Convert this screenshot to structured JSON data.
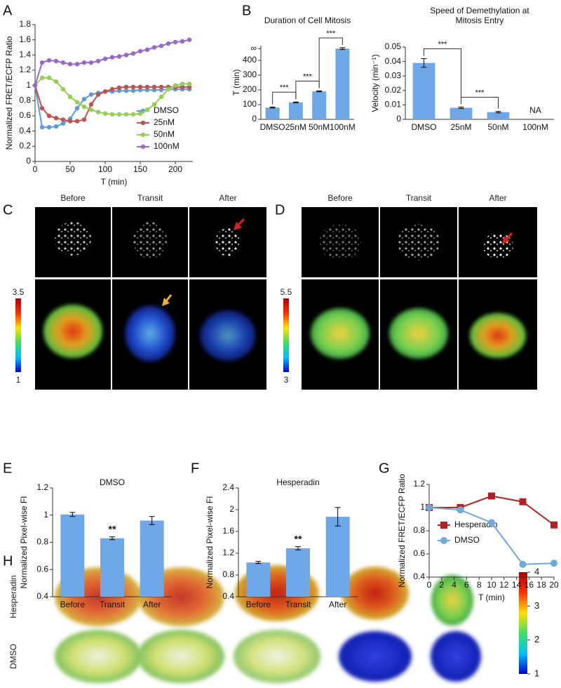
{
  "panel_labels": [
    "A",
    "B",
    "C",
    "D",
    "E",
    "F",
    "G",
    "H"
  ],
  "chart_data": [
    {
      "type": "line",
      "ylabel": "Normalized FRET/ECFP Ratio",
      "xlabel": "T (min)",
      "x": [
        0,
        10,
        20,
        30,
        40,
        50,
        60,
        70,
        80,
        90,
        100,
        110,
        120,
        130,
        140,
        150,
        160,
        170,
        180,
        190,
        200,
        210,
        220
      ],
      "xlim": [
        0,
        225
      ],
      "xticks": [
        0,
        50,
        100,
        150,
        200
      ],
      "ylim": [
        0,
        1.8
      ],
      "yticks": [
        0,
        0.2,
        0.4,
        0.6,
        0.8,
        1,
        1.2,
        1.4,
        1.6,
        1.8
      ],
      "legend": "lower right",
      "series": [
        {
          "name": "DMSO",
          "color": "#5b9bd5",
          "marker": "circle",
          "values": [
            1,
            0.45,
            0.45,
            0.46,
            0.5,
            0.56,
            0.7,
            0.82,
            0.88,
            0.9,
            0.92,
            0.92,
            0.93,
            0.93,
            0.93,
            0.94,
            0.94,
            0.94,
            0.94,
            0.95,
            0.95,
            0.95,
            0.95
          ]
        },
        {
          "name": "25nM",
          "color": "#c0504d",
          "marker": "circle",
          "values": [
            1,
            0.7,
            0.6,
            0.57,
            0.55,
            0.53,
            0.53,
            0.55,
            0.75,
            0.88,
            0.92,
            0.95,
            0.97,
            0.98,
            0.98,
            0.98,
            0.98,
            0.98,
            0.98,
            0.98,
            0.98,
            0.98,
            0.98
          ]
        },
        {
          "name": "50nM",
          "color": "#92d050",
          "marker": "circle",
          "values": [
            1,
            1.1,
            1.1,
            1.05,
            0.95,
            0.85,
            0.78,
            0.72,
            0.68,
            0.65,
            0.63,
            0.62,
            0.62,
            0.62,
            0.62,
            0.63,
            0.68,
            0.75,
            0.85,
            0.95,
            1.0,
            1.02,
            1.02
          ]
        },
        {
          "name": "100nM",
          "color": "#9966cc",
          "marker": "circle",
          "values": [
            1,
            1.3,
            1.33,
            1.32,
            1.3,
            1.28,
            1.28,
            1.3,
            1.3,
            1.32,
            1.35,
            1.37,
            1.38,
            1.4,
            1.42,
            1.45,
            1.47,
            1.5,
            1.52,
            1.55,
            1.57,
            1.58,
            1.6
          ]
        }
      ]
    },
    {
      "type": "bar",
      "title": "Duration of Cell Mitosis",
      "ylabel": "T (min)",
      "categories": [
        "DMSO",
        "25nM",
        "50nM",
        "100nM"
      ],
      "values": [
        80,
        115,
        190,
        480
      ],
      "errors": [
        3,
        3,
        3,
        6
      ],
      "color": "#6fa8e8",
      "ylim": [
        0,
        500
      ],
      "yticks": [
        0,
        100,
        200,
        300,
        400,
        {
          "value": 480,
          "label": "∞"
        }
      ],
      "brackets": [
        {
          "text": "***",
          "from": "DMSO",
          "to": "25nM"
        },
        {
          "text": "***",
          "from": "25nM",
          "to": "50nM"
        },
        {
          "text": "***",
          "from": "50nM",
          "to": "100nM"
        }
      ]
    },
    {
      "type": "bar",
      "title": "Speed of Demethylation at Mitosis Entry",
      "ylabel": "Velocity (min⁻¹)",
      "categories": [
        "DMSO",
        "25nM",
        "50nM",
        "100nM"
      ],
      "values": [
        0.039,
        0.008,
        0.005,
        null
      ],
      "errors": [
        0.003,
        0.0005,
        0.0005,
        null
      ],
      "na_label": "NA",
      "color": "#6fa8e8",
      "ylim": [
        0,
        0.05
      ],
      "yticks": [
        0,
        0.01,
        0.02,
        0.03,
        0.04,
        0.05
      ],
      "brackets": [
        {
          "text": "***",
          "from": "DMSO",
          "to": "25nM"
        },
        {
          "text": "***",
          "from": "25nM",
          "to": "50nM"
        }
      ]
    },
    {
      "type": "bar",
      "title": "DMSO",
      "ylabel": "Normalized Pixel-wise FI",
      "categories": [
        "Before",
        "Transit",
        "After"
      ],
      "values": [
        1.005,
        0.83,
        0.96
      ],
      "errors": [
        0.015,
        0.01,
        0.03
      ],
      "color": "#6fa8e8",
      "ylim": [
        0.4,
        1.2
      ],
      "yticks": [
        0.4,
        0.6,
        0.8,
        1,
        1.2
      ],
      "markers": [
        {
          "text": "**",
          "category": "Transit"
        }
      ]
    },
    {
      "type": "bar",
      "title": "Hesperadin",
      "ylabel": "Normalized Pixel-wise FI",
      "categories": [
        "Before",
        "Transit",
        "After"
      ],
      "values": [
        1.03,
        1.29,
        1.87
      ],
      "errors": [
        0.02,
        0.03,
        0.17
      ],
      "color": "#6fa8e8",
      "ylim": [
        0.4,
        2.4
      ],
      "yticks": [
        0.4,
        0.8,
        1.2,
        1.6,
        2,
        2.4
      ],
      "markers": [
        {
          "text": "**",
          "category": "Transit"
        }
      ]
    },
    {
      "type": "line",
      "ylabel": "Normalized FRET/ECFP Ratio",
      "xlabel": "T (min)",
      "x": [
        0,
        5,
        10,
        15,
        20
      ],
      "xlim": [
        0,
        20
      ],
      "xticks": [
        0,
        2,
        4,
        6,
        8,
        10,
        12,
        14,
        16,
        18,
        20
      ],
      "ylim": [
        0.4,
        1.2
      ],
      "yticks": [
        0.4,
        0.6,
        0.8,
        1,
        1.2
      ],
      "legend": "center left",
      "series": [
        {
          "name": "Hesperadin",
          "color": "#b22222",
          "marker": "square",
          "values": [
            1,
            1,
            1.1,
            1.05,
            0.85
          ]
        },
        {
          "name": "DMSO",
          "color": "#6fa8dc",
          "marker": "circle",
          "values": [
            1,
            0.98,
            0.87,
            0.51,
            0.52
          ]
        }
      ]
    }
  ],
  "images": {
    "C": {
      "columns": [
        "Before",
        "Transit",
        "After"
      ],
      "colorbar": {
        "max": 3.5,
        "min": 1
      }
    },
    "D": {
      "columns": [
        "Before",
        "Transit",
        "After"
      ],
      "colorbar": {
        "max": 5.5,
        "min": 3
      }
    },
    "H": {
      "rows": [
        "Hesperadin",
        "DMSO"
      ],
      "colorbar": [
        1,
        2,
        3,
        4
      ]
    }
  }
}
